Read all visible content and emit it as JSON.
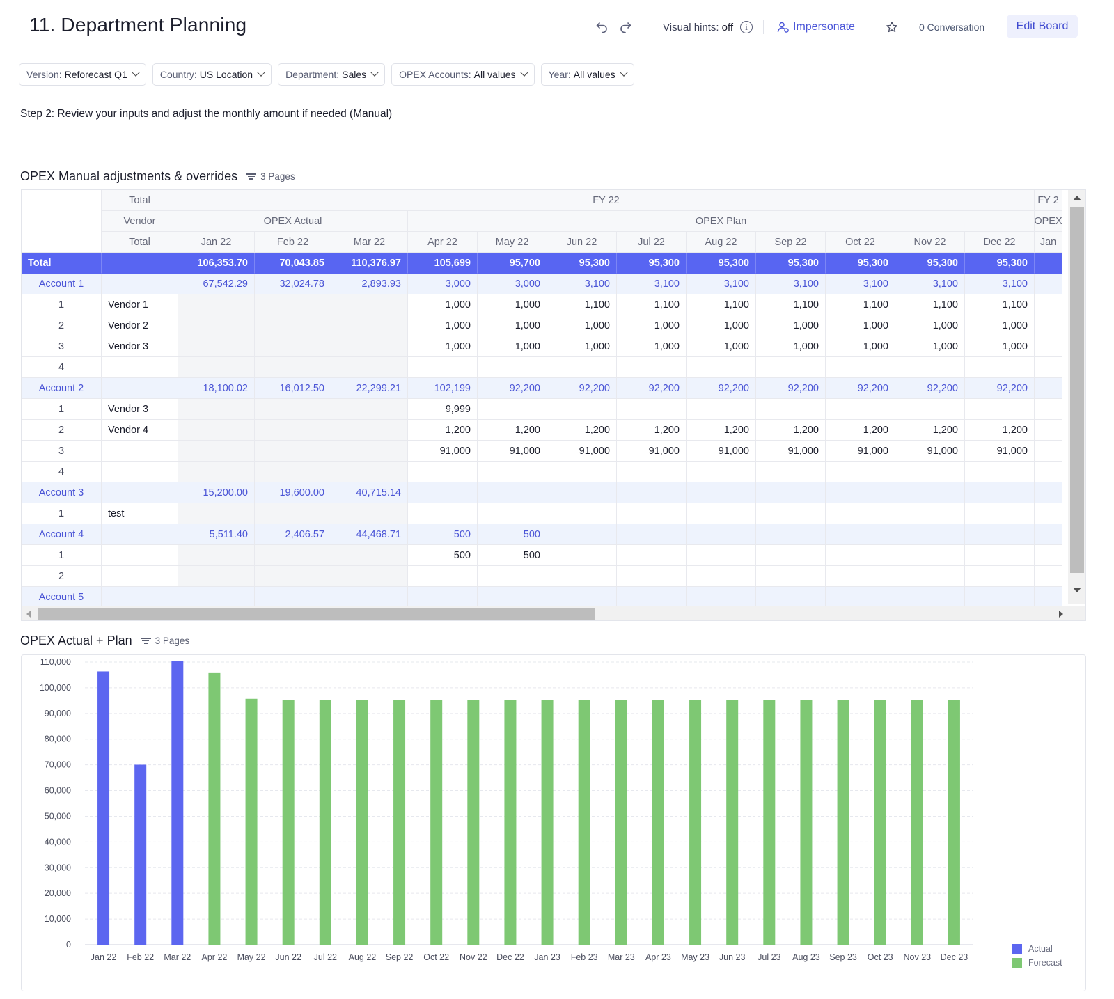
{
  "header": {
    "title": "11. Department Planning",
    "visual_hints_label": "Visual hints:",
    "visual_hints_value": "off",
    "impersonate_label": "Impersonate",
    "conversation_label": "0 Conversation",
    "edit_board_label": "Edit Board"
  },
  "filters": [
    {
      "label": "Version:",
      "value": "Reforecast Q1"
    },
    {
      "label": "Country:",
      "value": "US Location"
    },
    {
      "label": "Department:",
      "value": "Sales"
    },
    {
      "label": "OPEX Accounts:",
      "value": "All values"
    },
    {
      "label": "Year:",
      "value": "All values"
    }
  ],
  "step_text": "Step 2: Review your inputs and adjust the monthly amount if needed (Manual)",
  "table": {
    "title": "OPEX Manual adjustments & overrides",
    "pages_label": "3 Pages",
    "header_rows": {
      "row1_left": "Total",
      "fy22": "FY 22",
      "fy23_partial": "FY 2",
      "row2_left": "Vendor",
      "opex_actual": "OPEX Actual",
      "opex_plan": "OPEX Plan",
      "opex_partial": "OPEX",
      "row3_left": "Total"
    },
    "months": [
      "Jan 22",
      "Feb 22",
      "Mar 22",
      "Apr 22",
      "May 22",
      "Jun 22",
      "Jul 22",
      "Aug 22",
      "Sep 22",
      "Oct 22",
      "Nov 22",
      "Dec 22",
      "Jan"
    ],
    "rows": [
      {
        "type": "total",
        "label": "Total",
        "vendor": "",
        "values": [
          "106,353.70",
          "70,043.85",
          "110,376.97",
          "105,699",
          "95,700",
          "95,300",
          "95,300",
          "95,300",
          "95,300",
          "95,300",
          "95,300",
          "95,300",
          ""
        ]
      },
      {
        "type": "account",
        "label": "Account 1",
        "vendor": "",
        "values": [
          "67,542.29",
          "32,024.78",
          "2,893.93",
          "3,000",
          "3,000",
          "3,100",
          "3,100",
          "3,100",
          "3,100",
          "3,100",
          "3,100",
          "3,100",
          ""
        ]
      },
      {
        "type": "item",
        "label": "1",
        "vendor": "Vendor 1",
        "values": [
          "",
          "",
          "",
          "1,000",
          "1,000",
          "1,100",
          "1,100",
          "1,100",
          "1,100",
          "1,100",
          "1,100",
          "1,100",
          ""
        ]
      },
      {
        "type": "item",
        "label": "2",
        "vendor": "Vendor 2",
        "values": [
          "",
          "",
          "",
          "1,000",
          "1,000",
          "1,000",
          "1,000",
          "1,000",
          "1,000",
          "1,000",
          "1,000",
          "1,000",
          ""
        ]
      },
      {
        "type": "item",
        "label": "3",
        "vendor": "Vendor 3",
        "values": [
          "",
          "",
          "",
          "1,000",
          "1,000",
          "1,000",
          "1,000",
          "1,000",
          "1,000",
          "1,000",
          "1,000",
          "1,000",
          ""
        ]
      },
      {
        "type": "item",
        "label": "4",
        "vendor": "",
        "values": [
          "",
          "",
          "",
          "",
          "",
          "",
          "",
          "",
          "",
          "",
          "",
          "",
          ""
        ]
      },
      {
        "type": "account",
        "label": "Account 2",
        "vendor": "",
        "values": [
          "18,100.02",
          "16,012.50",
          "22,299.21",
          "102,199",
          "92,200",
          "92,200",
          "92,200",
          "92,200",
          "92,200",
          "92,200",
          "92,200",
          "92,200",
          ""
        ]
      },
      {
        "type": "item",
        "label": "1",
        "vendor": "Vendor 3",
        "values": [
          "",
          "",
          "",
          "9,999",
          "",
          "",
          "",
          "",
          "",
          "",
          "",
          "",
          ""
        ]
      },
      {
        "type": "item",
        "label": "2",
        "vendor": "Vendor 4",
        "values": [
          "",
          "",
          "",
          "1,200",
          "1,200",
          "1,200",
          "1,200",
          "1,200",
          "1,200",
          "1,200",
          "1,200",
          "1,200",
          ""
        ]
      },
      {
        "type": "item",
        "label": "3",
        "vendor": "",
        "values": [
          "",
          "",
          "",
          "91,000",
          "91,000",
          "91,000",
          "91,000",
          "91,000",
          "91,000",
          "91,000",
          "91,000",
          "91,000",
          ""
        ]
      },
      {
        "type": "item",
        "label": "4",
        "vendor": "",
        "values": [
          "",
          "",
          "",
          "",
          "",
          "",
          "",
          "",
          "",
          "",
          "",
          "",
          ""
        ]
      },
      {
        "type": "account",
        "label": "Account 3",
        "vendor": "",
        "values": [
          "15,200.00",
          "19,600.00",
          "40,715.14",
          "",
          "",
          "",
          "",
          "",
          "",
          "",
          "",
          "",
          ""
        ]
      },
      {
        "type": "item",
        "label": "1",
        "vendor": "test",
        "values": [
          "",
          "",
          "",
          "",
          "",
          "",
          "",
          "",
          "",
          "",
          "",
          "",
          ""
        ]
      },
      {
        "type": "account",
        "label": "Account 4",
        "vendor": "",
        "values": [
          "5,511.40",
          "2,406.57",
          "44,468.71",
          "500",
          "500",
          "",
          "",
          "",
          "",
          "",
          "",
          "",
          ""
        ]
      },
      {
        "type": "item",
        "label": "1",
        "vendor": "",
        "values": [
          "",
          "",
          "",
          "500",
          "500",
          "",
          "",
          "",
          "",
          "",
          "",
          "",
          ""
        ]
      },
      {
        "type": "item",
        "label": "2",
        "vendor": "",
        "values": [
          "",
          "",
          "",
          "",
          "",
          "",
          "",
          "",
          "",
          "",
          "",
          "",
          ""
        ]
      },
      {
        "type": "account",
        "label": "Account 5",
        "vendor": "",
        "values": [
          "",
          "",
          "",
          "",
          "",
          "",
          "",
          "",
          "",
          "",
          "",
          "",
          ""
        ]
      }
    ]
  },
  "chart": {
    "title": "OPEX Actual + Plan",
    "pages_label": "3 Pages"
  },
  "chart_data": {
    "type": "bar",
    "title": "OPEX Actual + Plan",
    "xlabel": "",
    "ylabel": "",
    "ylim": [
      0,
      110000
    ],
    "yticks": [
      0,
      10000,
      20000,
      30000,
      40000,
      50000,
      60000,
      70000,
      80000,
      90000,
      100000,
      110000
    ],
    "ytick_labels": [
      "0",
      "10,000",
      "20,000",
      "30,000",
      "40,000",
      "50,000",
      "60,000",
      "70,000",
      "80,000",
      "90,000",
      "100,000",
      "110,000"
    ],
    "categories": [
      "Jan 22",
      "Feb 22",
      "Mar 22",
      "Apr 22",
      "May 22",
      "Jun 22",
      "Jul 22",
      "Aug 22",
      "Sep 22",
      "Oct 22",
      "Nov 22",
      "Dec 22",
      "Jan 23",
      "Feb 23",
      "Mar 23",
      "Apr 23",
      "May 23",
      "Jun 23",
      "Jul 23",
      "Aug 23",
      "Sep 23",
      "Oct 23",
      "Nov 23",
      "Dec 23"
    ],
    "series": [
      {
        "name": "Actual",
        "color": "#5c66f0",
        "values": [
          106353.7,
          70043.85,
          110376.97,
          null,
          null,
          null,
          null,
          null,
          null,
          null,
          null,
          null,
          null,
          null,
          null,
          null,
          null,
          null,
          null,
          null,
          null,
          null,
          null,
          null
        ]
      },
      {
        "name": "Forecast",
        "color": "#7ec873",
        "values": [
          null,
          null,
          null,
          105699,
          95700,
          95300,
          95300,
          95300,
          95300,
          95300,
          95300,
          95300,
          95300,
          95300,
          95300,
          95300,
          95300,
          95300,
          95300,
          95300,
          95300,
          95300,
          95300,
          95300
        ]
      }
    ],
    "grid": true,
    "legend": "bottom-right"
  }
}
